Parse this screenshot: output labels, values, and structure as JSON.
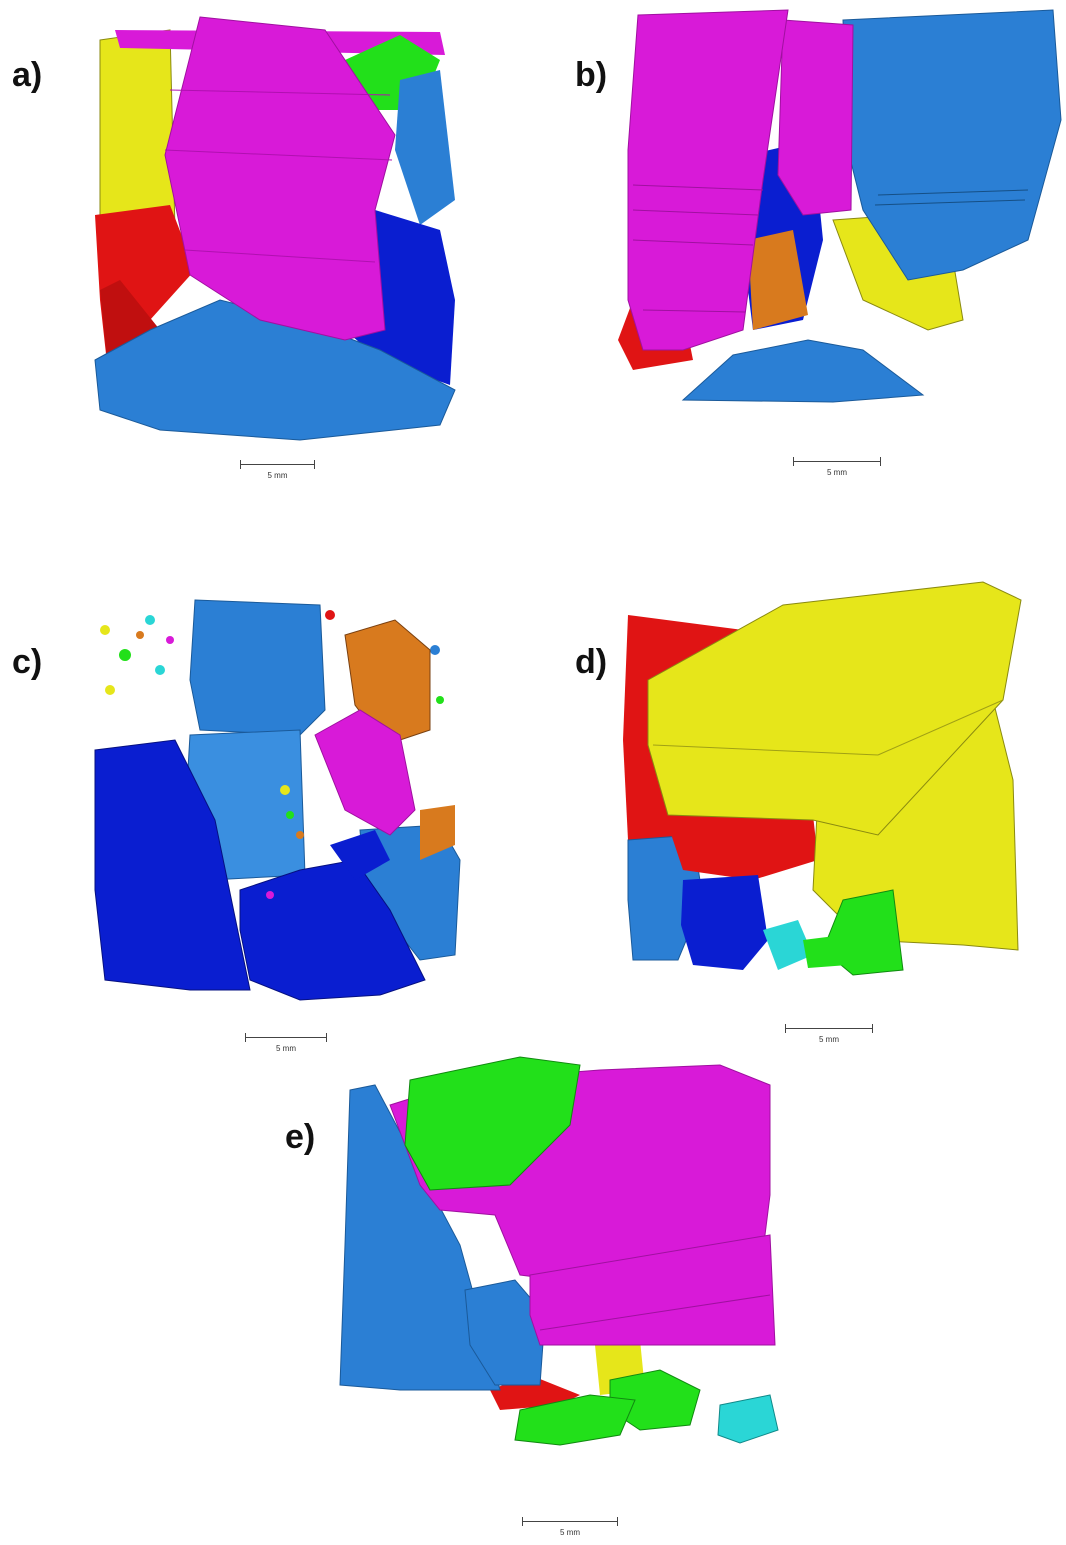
{
  "figure": {
    "panels": [
      {
        "label": "a)",
        "scale": "5 mm"
      },
      {
        "label": "b)",
        "scale": "5 mm"
      },
      {
        "label": "c)",
        "scale": "5 mm"
      },
      {
        "label": "d)",
        "scale": "5 mm"
      },
      {
        "label": "e)",
        "scale": "5 mm"
      }
    ]
  },
  "colors": {
    "magenta": "#d81ad8",
    "blue": "#2b7fd4",
    "dark_blue": "#0a1ed0",
    "yellow": "#e6e61a",
    "red": "#e01414",
    "green": "#22e01a",
    "orange": "#d87a1e",
    "cyan": "#2ad6d6"
  }
}
